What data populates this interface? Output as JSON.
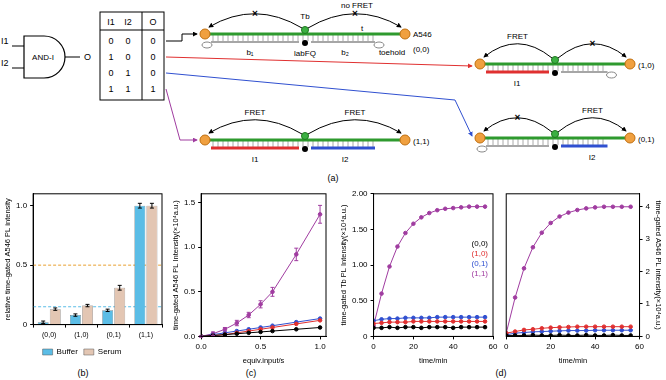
{
  "diagram": {
    "panel_label": "(a)",
    "gate": {
      "label": "AND-I",
      "inputs": [
        "I1",
        "I2"
      ],
      "output": "O"
    },
    "truth_table": {
      "header": [
        "I1",
        "I2",
        "O"
      ],
      "rows": [
        [
          0,
          0,
          0
        ],
        [
          1,
          0,
          0
        ],
        [
          0,
          1,
          0
        ],
        [
          1,
          1,
          1
        ]
      ]
    },
    "state_00": {
      "state": "(0,0)",
      "donor": "Tb",
      "acceptor": "A546",
      "note": "no FRET",
      "strand": "t",
      "blocked": "×",
      "segments": [
        "b₁",
        "b₂"
      ],
      "quencher": "labFQ",
      "toehold": "toehold"
    },
    "state_10": {
      "state": "(1,0)",
      "fret": "FRET",
      "blocked": "×",
      "input": "I1"
    },
    "state_01": {
      "state": "(0,1)",
      "fret": "FRET",
      "blocked": "×",
      "input": "I2"
    },
    "state_11": {
      "state": "(1,1)",
      "fret": [
        "FRET",
        "FRET"
      ],
      "inputs": [
        "I1",
        "I2"
      ]
    }
  },
  "chart_data": [
    {
      "type": "bar",
      "panel_label": "(b)",
      "y_label": "relative time-gated A546 PL intensity",
      "categories": [
        "(0,0)",
        "(1,0)",
        "(0,1)",
        "(1,1)"
      ],
      "series": [
        {
          "name": "Buffer",
          "color": "#5bbde6",
          "values": [
            0.02,
            0.08,
            0.12,
            1.0
          ],
          "errors": [
            0.01,
            0.01,
            0.01,
            0.02
          ]
        },
        {
          "name": "Serum",
          "color": "#e3c6b3",
          "values": [
            0.13,
            0.16,
            0.31,
            1.0
          ],
          "errors": [
            0.01,
            0.01,
            0.02,
            0.02
          ]
        }
      ],
      "ylim": [
        0,
        1.1
      ],
      "yticks": [
        0,
        0.5,
        {
          "value": 1,
          "label": "1.0"
        }
      ],
      "grid": false,
      "legend": "bottom",
      "reference_lines": [
        {
          "value": 0.5,
          "color": "#e8a030",
          "line_style": "dashed"
        },
        {
          "value": 0.15,
          "color": "#5bbde6",
          "line_style": "dashed"
        }
      ]
    },
    {
      "type": "line",
      "panel_label": "(c)",
      "x_label": "equiv.input/s",
      "y_label": "time-gated A546 PL Intensity(×10⁴a.u.)",
      "x": [
        0,
        0.1,
        0.2,
        0.3,
        0.4,
        0.5,
        0.6,
        0.8,
        1.0
      ],
      "series": [
        {
          "color": "#000000",
          "values": [
            0.0,
            0.01,
            0.02,
            0.03,
            0.04,
            0.05,
            0.06,
            0.08,
            0.1
          ],
          "marker": "circle",
          "line_style": "solid"
        },
        {
          "color": "#e03030",
          "values": [
            0.0,
            0.01,
            0.02,
            0.04,
            0.06,
            0.08,
            0.1,
            0.14,
            0.18
          ],
          "marker": "circle",
          "line_style": "solid"
        },
        {
          "color": "#3050d0",
          "values": [
            0.0,
            0.02,
            0.04,
            0.06,
            0.08,
            0.1,
            0.12,
            0.16,
            0.2
          ],
          "marker": "circle",
          "line_style": "solid"
        },
        {
          "color": "#a03ca0",
          "values": [
            0.0,
            0.03,
            0.08,
            0.15,
            0.24,
            0.36,
            0.5,
            0.92,
            1.37
          ],
          "errors": [
            0.01,
            0.02,
            0.02,
            0.03,
            0.03,
            0.04,
            0.05,
            0.07,
            0.1
          ],
          "marker": "circle",
          "line_style": "solid"
        }
      ],
      "xlim": [
        0,
        1.05
      ],
      "xticks": [
        {
          "value": 0,
          "label": "0.0"
        },
        0.5,
        {
          "value": 1,
          "label": "1.0"
        }
      ],
      "ylim": [
        0,
        1.6
      ],
      "yticks": [
        {
          "value": 0,
          "label": "0.0"
        },
        0.5,
        {
          "value": 1,
          "label": "1.0"
        },
        1.5
      ],
      "grid": false
    },
    {
      "type": "line",
      "panel_label": "(d)",
      "x_label": "time/min",
      "y_label": "time-gated Tb PL Intensity(×10⁴a.u.)",
      "x": [
        0,
        4,
        8,
        12,
        16,
        20,
        24,
        28,
        32,
        36,
        40,
        44,
        48,
        52,
        56
      ],
      "series": [
        {
          "name": "(0,0)",
          "color": "#000000",
          "values": [
            0.12,
            0.12,
            0.13,
            0.12,
            0.13,
            0.13,
            0.12,
            0.13,
            0.13,
            0.13,
            0.12,
            0.13,
            0.13,
            0.13,
            0.13
          ],
          "marker": "circle",
          "line_style": "solid"
        },
        {
          "name": "(1,0)",
          "color": "#e03030",
          "values": [
            0.18,
            0.19,
            0.2,
            0.2,
            0.2,
            0.21,
            0.21,
            0.21,
            0.21,
            0.21,
            0.21,
            0.21,
            0.21,
            0.21,
            0.21
          ],
          "marker": "circle",
          "line_style": "solid"
        },
        {
          "name": "(0,1)",
          "color": "#3050d0",
          "values": [
            0.22,
            0.24,
            0.25,
            0.25,
            0.26,
            0.26,
            0.26,
            0.26,
            0.27,
            0.27,
            0.27,
            0.27,
            0.27,
            0.27,
            0.27
          ],
          "marker": "circle",
          "line_style": "solid"
        },
        {
          "name": "(1,1)",
          "color": "#a03ca0",
          "values": [
            0.15,
            0.6,
            0.98,
            1.26,
            1.45,
            1.58,
            1.67,
            1.73,
            1.77,
            1.79,
            1.8,
            1.81,
            1.82,
            1.82,
            1.82
          ],
          "marker": "circle",
          "line_style": "solid"
        }
      ],
      "xlim": [
        0,
        60
      ],
      "xticks": [
        0,
        20,
        40,
        60
      ],
      "ylim": [
        0,
        2
      ],
      "yticks": [
        0,
        {
          "value": 0.5,
          "label": "0.50"
        },
        {
          "value": 1,
          "label": "1.00"
        },
        {
          "value": 1.5,
          "label": "1.50"
        },
        {
          "value": 2,
          "label": "2.00"
        }
      ],
      "grid": false,
      "legend": "right"
    },
    {
      "type": "line",
      "x_label": "time/min",
      "y2_label": "time-gated A546 PL intensity(×10⁴a.u.)",
      "x": [
        0,
        4,
        8,
        12,
        16,
        20,
        24,
        28,
        32,
        36,
        40,
        44,
        48,
        52,
        56
      ],
      "series": [
        {
          "color": "#000000",
          "axis": "y2",
          "values": [
            0.03,
            0.03,
            0.03,
            0.04,
            0.03,
            0.03,
            0.04,
            0.03,
            0.03,
            0.04,
            0.03,
            0.03,
            0.04,
            0.03,
            0.03
          ],
          "marker": "circle",
          "line_style": "solid"
        },
        {
          "color": "#e03030",
          "axis": "y2",
          "values": [
            0.1,
            0.15,
            0.2,
            0.22,
            0.25,
            0.27,
            0.28,
            0.29,
            0.3,
            0.3,
            0.3,
            0.3,
            0.3,
            0.3,
            0.3
          ],
          "marker": "circle",
          "line_style": "solid"
        },
        {
          "color": "#3050d0",
          "axis": "y2",
          "values": [
            0.05,
            0.1,
            0.12,
            0.14,
            0.15,
            0.16,
            0.17,
            0.18,
            0.18,
            0.18,
            0.19,
            0.19,
            0.19,
            0.19,
            0.19
          ],
          "marker": "circle",
          "line_style": "solid"
        },
        {
          "color": "#a03ca0",
          "axis": "y2",
          "values": [
            0.1,
            1.2,
            2.1,
            2.75,
            3.2,
            3.5,
            3.7,
            3.82,
            3.9,
            3.95,
            3.98,
            4.0,
            4.0,
            4.0,
            4.0
          ],
          "marker": "circle",
          "line_style": "solid"
        }
      ],
      "xlim": [
        0,
        60
      ],
      "xticks": [
        0,
        20,
        40,
        60
      ],
      "y2lim": [
        0,
        4.4
      ],
      "y2ticks": [
        0,
        1,
        2,
        3,
        4
      ],
      "grid": false
    }
  ]
}
